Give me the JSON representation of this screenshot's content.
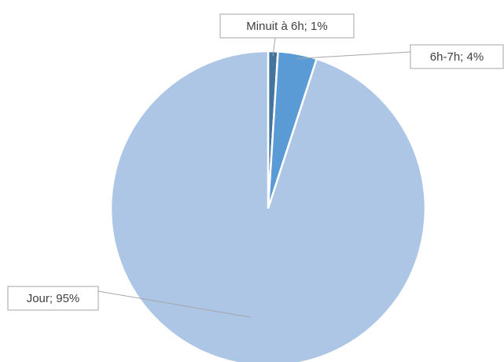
{
  "chart_data": {
    "type": "pie",
    "categories": [
      "Minuit à 6h",
      "6h-7h",
      "Jour"
    ],
    "values": [
      1,
      4,
      95
    ],
    "value_labels": [
      "Minuit à 6h; 1%",
      "6h-7h; 4%",
      "Jour; 95%"
    ],
    "colors": [
      "#44739e",
      "#5b9bd5",
      "#adc6e6"
    ]
  }
}
